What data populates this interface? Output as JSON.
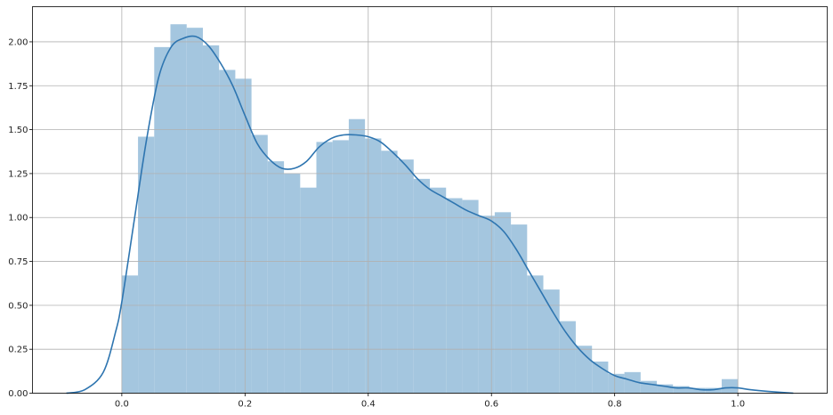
{
  "chart_data": {
    "type": "bar",
    "title": "",
    "xlabel": "",
    "ylabel": "",
    "xlim": [
      -0.145,
      1.145
    ],
    "ylim": [
      0,
      2.2
    ],
    "grid": true,
    "x_ticks": [
      {
        "value": 0.0,
        "label": "0.0"
      },
      {
        "value": 0.2,
        "label": "0.2"
      },
      {
        "value": 0.4,
        "label": "0.4"
      },
      {
        "value": 0.6,
        "label": "0.6"
      },
      {
        "value": 0.8,
        "label": "0.8"
      },
      {
        "value": 1.0,
        "label": "1.0"
      }
    ],
    "y_ticks": [
      {
        "value": 0.0,
        "label": "0.00"
      },
      {
        "value": 0.25,
        "label": "0.25"
      },
      {
        "value": 0.5,
        "label": "0.50"
      },
      {
        "value": 0.75,
        "label": "0.75"
      },
      {
        "value": 1.0,
        "label": "1.00"
      },
      {
        "value": 1.25,
        "label": "1.25"
      },
      {
        "value": 1.5,
        "label": "1.50"
      },
      {
        "value": 1.75,
        "label": "1.75"
      },
      {
        "value": 2.0,
        "label": "2.00"
      }
    ],
    "histogram": {
      "bin_edges": [
        0.0,
        0.0263,
        0.0526,
        0.0789,
        0.1053,
        0.1316,
        0.1579,
        0.1842,
        0.2105,
        0.2368,
        0.2632,
        0.2895,
        0.3158,
        0.3421,
        0.3684,
        0.3947,
        0.4211,
        0.4474,
        0.4737,
        0.5,
        0.5263,
        0.5526,
        0.5789,
        0.6053,
        0.6316,
        0.6579,
        0.6842,
        0.7105,
        0.7368,
        0.7632,
        0.7895,
        0.8158,
        0.8421,
        0.8684,
        0.8947,
        0.9211,
        0.9474,
        0.9737,
        1.0
      ],
      "values": [
        0.67,
        1.46,
        1.97,
        2.1,
        2.08,
        1.98,
        1.84,
        1.79,
        1.47,
        1.32,
        1.25,
        1.17,
        1.43,
        1.44,
        1.56,
        1.45,
        1.38,
        1.33,
        1.22,
        1.17,
        1.11,
        1.1,
        1.01,
        1.03,
        0.96,
        0.67,
        0.59,
        0.41,
        0.27,
        0.18,
        0.11,
        0.12,
        0.07,
        0.05,
        0.04,
        0.03,
        0.03,
        0.08
      ],
      "color": "#a4c6df"
    },
    "kde": {
      "color": "#2e75b0",
      "x": [
        -0.09,
        -0.06,
        -0.03,
        -0.01,
        0.0,
        0.02,
        0.04,
        0.06,
        0.08,
        0.1,
        0.12,
        0.14,
        0.16,
        0.18,
        0.2,
        0.22,
        0.24,
        0.26,
        0.28,
        0.3,
        0.32,
        0.34,
        0.36,
        0.38,
        0.4,
        0.42,
        0.44,
        0.46,
        0.48,
        0.5,
        0.52,
        0.54,
        0.56,
        0.58,
        0.6,
        0.62,
        0.64,
        0.66,
        0.68,
        0.7,
        0.72,
        0.74,
        0.76,
        0.78,
        0.8,
        0.82,
        0.84,
        0.86,
        0.88,
        0.9,
        0.92,
        0.94,
        0.96,
        0.98,
        1.0,
        1.02,
        1.05,
        1.09
      ],
      "y": [
        0.0,
        0.02,
        0.12,
        0.35,
        0.52,
        0.98,
        1.44,
        1.8,
        1.97,
        2.02,
        2.03,
        1.98,
        1.88,
        1.75,
        1.58,
        1.42,
        1.33,
        1.28,
        1.28,
        1.32,
        1.4,
        1.45,
        1.47,
        1.47,
        1.46,
        1.43,
        1.37,
        1.3,
        1.22,
        1.16,
        1.12,
        1.08,
        1.04,
        1.01,
        0.98,
        0.92,
        0.82,
        0.7,
        0.58,
        0.46,
        0.35,
        0.26,
        0.19,
        0.14,
        0.1,
        0.08,
        0.06,
        0.05,
        0.04,
        0.03,
        0.03,
        0.02,
        0.02,
        0.03,
        0.03,
        0.02,
        0.01,
        0.0
      ]
    }
  }
}
